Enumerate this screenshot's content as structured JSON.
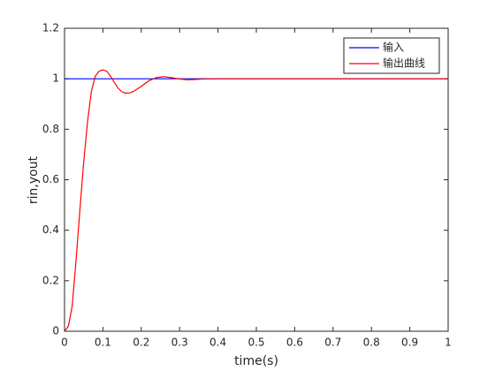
{
  "chart_data": {
    "type": "line",
    "xlabel": "time(s)",
    "ylabel": "rin,yout",
    "x": [
      0,
      0.01,
      0.02,
      0.03,
      0.04,
      0.05,
      0.06,
      0.07,
      0.08,
      0.09,
      0.1,
      0.11,
      0.12,
      0.13,
      0.14,
      0.15,
      0.16,
      0.17,
      0.18,
      0.2,
      0.22,
      0.24,
      0.26,
      0.28,
      0.3,
      0.32,
      0.34,
      0.36,
      0.4,
      0.5,
      0.6,
      0.7,
      0.8,
      0.9,
      1
    ],
    "series": [
      {
        "name": "输入",
        "color": "#0000ff",
        "values": [
          1,
          1,
          1,
          1,
          1,
          1,
          1,
          1,
          1,
          1,
          1,
          1,
          1,
          1,
          1,
          1,
          1,
          1,
          1,
          1,
          1,
          1,
          1,
          1,
          1,
          1,
          1,
          1,
          1,
          1,
          1,
          1,
          1,
          1,
          1
        ]
      },
      {
        "name": "输出曲线",
        "color": "#ff0000",
        "values": [
          0,
          0.02,
          0.1,
          0.28,
          0.48,
          0.67,
          0.83,
          0.95,
          1.01,
          1.03,
          1.035,
          1.03,
          1.01,
          0.985,
          0.962,
          0.948,
          0.943,
          0.944,
          0.95,
          0.97,
          0.992,
          1.005,
          1.008,
          1.004,
          0.999,
          0.996,
          0.997,
          0.999,
          1,
          1,
          1,
          1,
          1,
          1,
          1
        ]
      }
    ],
    "xlim": [
      0,
      1
    ],
    "xticks": [
      0,
      0.1,
      0.2,
      0.3,
      0.4,
      0.5,
      0.6,
      0.7,
      0.8,
      0.9,
      1
    ],
    "ylim": [
      0,
      1.2
    ],
    "yticks": [
      0,
      0.2,
      0.4,
      0.6,
      0.8,
      1,
      1.2
    ],
    "legend": "upper right"
  }
}
